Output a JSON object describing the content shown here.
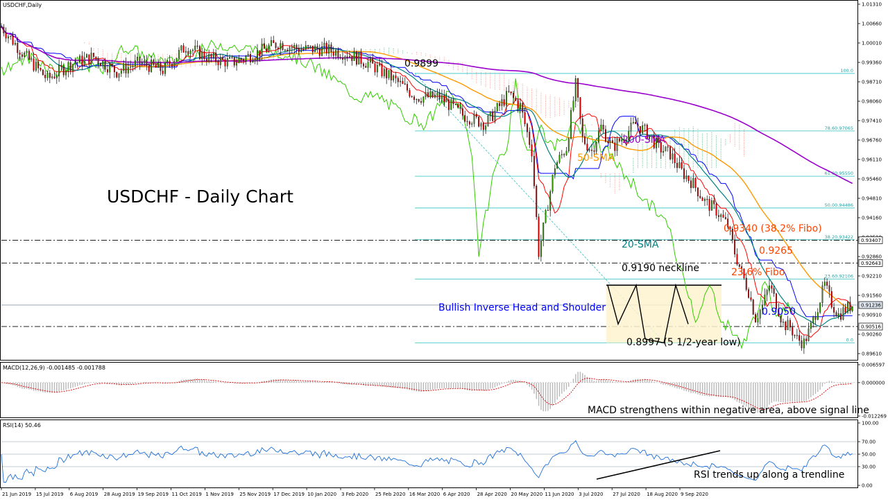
{
  "window": {
    "symbol_label": "USDCHF,Daily"
  },
  "chart_data": [
    {
      "type": "candlestick",
      "title": "USDCHF - Daily Chart",
      "ylim": [
        0.896,
        1.013
      ],
      "y_ticks": [
        "1.01310",
        "1.00660",
        "1.00010",
        "0.99360",
        "0.98710",
        "0.98060",
        "0.97410",
        "0.96760",
        "0.96110",
        "0.95460",
        "0.94810",
        "0.94160",
        "0.93510",
        "0.92860",
        "0.92210",
        "0.91560",
        "0.90910",
        "0.90260",
        "0.89610"
      ],
      "price_tags": [
        {
          "value": 0.93407,
          "label": "0.93407"
        },
        {
          "value": 0.92643,
          "label": "0.92643"
        },
        {
          "value": 0.91236,
          "label": "0.91236"
        },
        {
          "value": 0.90516,
          "label": "0.90516"
        }
      ],
      "x_labels": [
        "21 Jun 2019",
        "15 Jul 2019",
        "6 Aug 2019",
        "28 Aug 2019",
        "19 Sep 2019",
        "11 Oct 2019",
        "1 Nov 2019",
        "25 Nov 2019",
        "17 Dec 2019",
        "10 Jan 2020",
        "3 Feb 2020",
        "25 Feb 2020",
        "16 Mar 2020",
        "6 Apr 2020",
        "28 Apr 2020",
        "20 May 2020",
        "11 Jun 2020",
        "3 Jul 2020",
        "27 Jul 2020",
        "18 Aug 2020",
        "9 Sep 2020"
      ],
      "price_path": [
        [
          0,
          1.0055
        ],
        [
          10,
          0.996
        ],
        [
          20,
          0.988
        ],
        [
          30,
          0.993
        ],
        [
          40,
          0.9955
        ],
        [
          50,
          0.9905
        ],
        [
          60,
          0.9935
        ],
        [
          70,
          0.991
        ],
        [
          80,
          0.999
        ],
        [
          90,
          0.995
        ],
        [
          100,
          0.9935
        ],
        [
          110,
          0.9965
        ],
        [
          120,
          1.0
        ],
        [
          130,
          0.998
        ],
        [
          140,
          0.998
        ],
        [
          150,
          0.9965
        ],
        [
          160,
          0.993
        ],
        [
          170,
          0.988
        ],
        [
          180,
          0.982
        ],
        [
          190,
          0.982
        ],
        [
          200,
          0.976
        ],
        [
          210,
          0.973
        ],
        [
          220,
          0.983
        ],
        [
          225,
          0.979
        ],
        [
          230,
          0.964
        ],
        [
          233,
          0.93
        ],
        [
          236,
          0.942
        ],
        [
          240,
          0.959
        ],
        [
          245,
          0.965
        ],
        [
          249,
          0.986
        ],
        [
          252,
          0.968
        ],
        [
          256,
          0.964
        ],
        [
          260,
          0.972
        ],
        [
          265,
          0.965
        ],
        [
          270,
          0.969
        ],
        [
          275,
          0.973
        ],
        [
          280,
          0.97
        ],
        [
          285,
          0.965
        ],
        [
          290,
          0.963
        ],
        [
          295,
          0.957
        ],
        [
          300,
          0.953
        ],
        [
          305,
          0.947
        ],
        [
          310,
          0.944
        ],
        [
          315,
          0.939
        ],
        [
          318,
          0.93
        ],
        [
          321,
          0.923
        ],
        [
          324,
          0.917
        ],
        [
          327,
          0.908
        ],
        [
          330,
          0.912
        ],
        [
          333,
          0.919
        ],
        [
          336,
          0.913
        ],
        [
          339,
          0.906
        ],
        [
          342,
          0.905
        ],
        [
          345,
          0.901
        ],
        [
          348,
          0.8997
        ],
        [
          351,
          0.905
        ],
        [
          354,
          0.912
        ],
        [
          357,
          0.919
        ],
        [
          360,
          0.913
        ],
        [
          363,
          0.909
        ],
        [
          366,
          0.911
        ],
        [
          369,
          0.9124
        ]
      ],
      "fib_levels": [
        {
          "label": "100.0",
          "value": 0.9899
        },
        {
          "label": "78.60.97065",
          "value": 0.97065
        },
        {
          "label": "61.80.95550",
          "value": 0.9555
        },
        {
          "label": "50.00.94486",
          "value": 0.94486
        },
        {
          "label": "38.20.93422",
          "value": 0.93422
        },
        {
          "label": "23.60.92106",
          "value": 0.92106
        },
        {
          "label": "0.0",
          "value": 0.8997
        }
      ],
      "horizontal_levels": [
        0.93407,
        0.92643,
        0.90516
      ],
      "annotations": [
        {
          "text": "0.9899",
          "color": "#000000"
        },
        {
          "text": "200-SMA",
          "color": "#9900cc"
        },
        {
          "text": "50-SMA",
          "color": "#ff9900"
        },
        {
          "text": "0.9340 (38.2% Fibo)",
          "color": "#ff4400"
        },
        {
          "text": "0.9265",
          "color": "#ff4400"
        },
        {
          "text": "20-SMA",
          "color": "#008080"
        },
        {
          "text": "0.9190 neckline",
          "color": "#000000"
        },
        {
          "text": "23.6% Fibo",
          "color": "#ff4400"
        },
        {
          "text": "Bullish Inverse Head and Shoulder",
          "color": "#0000ff"
        },
        {
          "text": "0.9050",
          "color": "#0000ff"
        },
        {
          "text": "0.8997 (5 1/2-year low)",
          "color": "#000000"
        }
      ],
      "series_colors": {
        "sma200": "#9900cc",
        "sma50": "#ff9900",
        "sma20": "#008080",
        "tenkan": "#ff0000",
        "kijun": "#0000ff",
        "chikou": "#33cc00",
        "cloud_bull": "#3cb371",
        "cloud_bear": "#fa8072",
        "candle_up": "#339900",
        "candle_down": "#cc0000"
      }
    },
    {
      "type": "histogram",
      "title": "MACD(12,26,9) -0.001485 -0.001788",
      "y_ticks": [
        "0.006597",
        "0.000000",
        "-0.012269"
      ],
      "ylim": [
        -0.012269,
        0.006597
      ],
      "annotation": "MACD strengthens within negative area, above signal line"
    },
    {
      "type": "line",
      "title": "RSI(14) 50.46",
      "y_ticks": [
        "100.00",
        "70.00",
        "50.00",
        "30.00",
        "0.00"
      ],
      "ylim": [
        0,
        100
      ],
      "levels": [
        70,
        50,
        30
      ],
      "annotation": "RSI trends up along a trendline"
    }
  ]
}
